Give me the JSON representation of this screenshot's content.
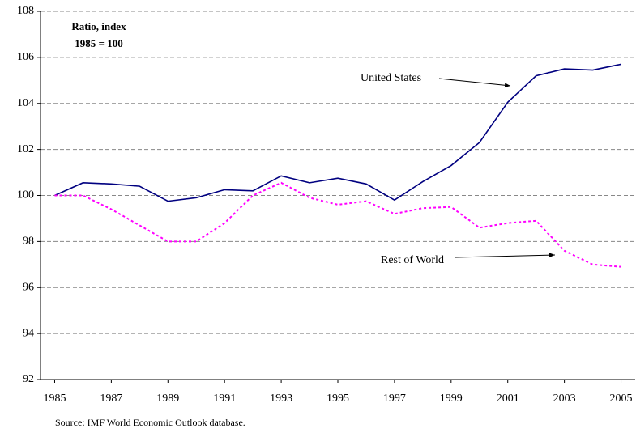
{
  "chart_data": {
    "type": "line",
    "y_label_lines": [
      "Ratio, index",
      "1985 = 100"
    ],
    "source": "Source: IMF World Economic Outlook database.",
    "x": [
      1985,
      1986,
      1987,
      1988,
      1989,
      1990,
      1991,
      1992,
      1993,
      1994,
      1995,
      1996,
      1997,
      1998,
      1999,
      2000,
      2001,
      2002,
      2003,
      2004,
      2005
    ],
    "xlim": [
      1984.5,
      2005.5
    ],
    "xticks": [
      1985,
      1987,
      1989,
      1991,
      1993,
      1995,
      1997,
      1999,
      2001,
      2003,
      2005
    ],
    "ylim": [
      92,
      108
    ],
    "yticks": [
      92,
      94,
      96,
      98,
      100,
      102,
      104,
      106,
      108
    ],
    "grid": true,
    "series": [
      {
        "name": "United States",
        "color": "#000080",
        "dash": false,
        "values": [
          100,
          100.55,
          100.5,
          100.4,
          99.75,
          99.9,
          100.25,
          100.2,
          100.85,
          100.55,
          100.75,
          100.5,
          99.8,
          100.6,
          101.3,
          102.3,
          104.05,
          105.2,
          105.5,
          105.45,
          105.7
        ]
      },
      {
        "name": "Rest of World",
        "color": "#ff00ff",
        "dash": true,
        "values": [
          100,
          100,
          99.4,
          98.7,
          98.0,
          98.0,
          98.8,
          100.0,
          100.55,
          99.9,
          99.6,
          99.75,
          99.2,
          99.45,
          99.5,
          98.6,
          98.8,
          98.9,
          97.6,
          97.0,
          96.9
        ]
      }
    ]
  }
}
